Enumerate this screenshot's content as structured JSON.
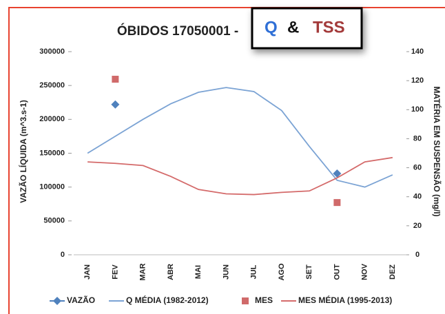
{
  "chart_data": {
    "type": "line",
    "title": "ÓBIDOS 17050001 -",
    "annotation": {
      "q": "Q",
      "amp": "&",
      "tss": "TSS"
    },
    "ylabel": "VAZÃO LÍQUIDA (m^3.s-1)",
    "y2label": "MATÉRIA EM SUSPENSÃO (mg/l)",
    "categories": [
      "JAN",
      "FEV",
      "MAR",
      "ABR",
      "MAI",
      "JUN",
      "JUL",
      "AGO",
      "SET",
      "OUT",
      "NOV",
      "DEZ"
    ],
    "ylim": [
      0,
      300000
    ],
    "yticks": [
      0,
      50000,
      100000,
      150000,
      200000,
      250000,
      300000
    ],
    "y2lim": [
      0,
      140
    ],
    "y2ticks": [
      0,
      20,
      40,
      60,
      80,
      100,
      120,
      140
    ],
    "series": [
      {
        "name": "VAZÃO",
        "color": "#4f81bd",
        "mode": "markers",
        "marker": "diamond",
        "values": [
          null,
          222000,
          null,
          null,
          null,
          null,
          null,
          null,
          null,
          120000,
          null,
          null
        ]
      },
      {
        "name": "Q MÉDIA (1982-2012)",
        "color": "#7ba3d4",
        "mode": "line",
        "values": [
          150000,
          175000,
          200000,
          223000,
          240000,
          247000,
          241000,
          213000,
          160000,
          110000,
          100000,
          118000
        ]
      },
      {
        "name": "MES",
        "color": "#d06a6a",
        "mode": "markers",
        "marker": "square",
        "axis": "y2",
        "values": [
          null,
          121,
          null,
          null,
          null,
          null,
          null,
          null,
          null,
          36,
          null,
          null
        ]
      },
      {
        "name": "MES MÉDIA (1995-2013)",
        "color": "#d46a6a",
        "mode": "line",
        "axis": "y2",
        "values": [
          64,
          63,
          61.5,
          54,
          45,
          42,
          41.5,
          43,
          44,
          53,
          64,
          67
        ]
      }
    ],
    "legend": "bottom"
  }
}
